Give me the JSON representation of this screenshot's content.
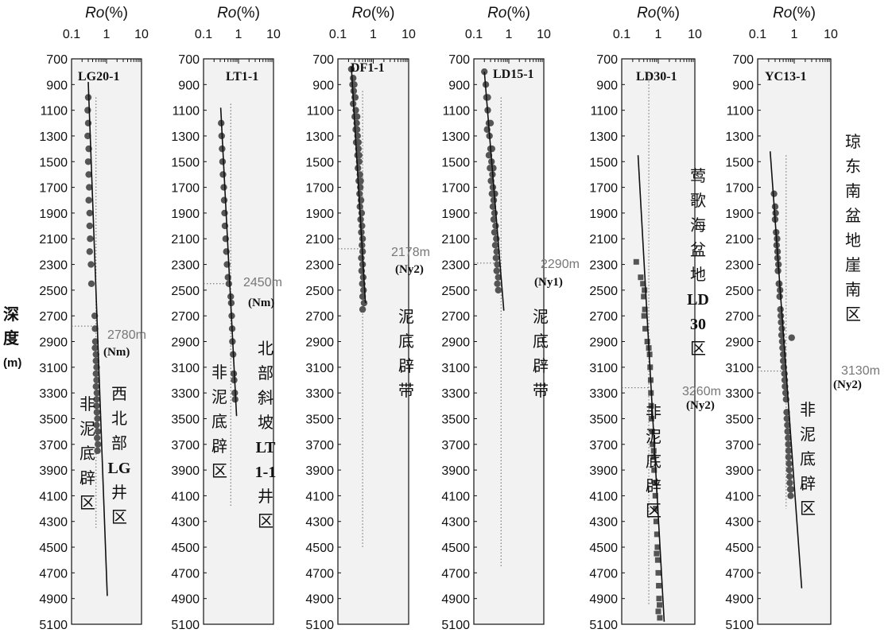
{
  "axis_title_main": "Ro",
  "axis_title_unit": "(%)",
  "x_ticks": [
    "0.1",
    "1",
    "10"
  ],
  "y_axis_label": {
    "line1": "深",
    "line2": "度",
    "unit": "(m)"
  },
  "colors": {
    "panel_bg": "#f2f2f2",
    "dot": "#555555",
    "line": "#111111",
    "threshold": "#777777"
  },
  "chart_data": [
    {
      "type": "scatter",
      "well": "LG20-1",
      "x_scale": "log",
      "xlim": [
        0.1,
        10
      ],
      "ylim": [
        700,
        5100
      ],
      "y_inverted": true,
      "ticks": [
        "700",
        "900",
        "1100",
        "1300",
        "1500",
        "1700",
        "1900",
        "2100",
        "2300",
        "2500",
        "2700",
        "2900",
        "3100",
        "3300",
        "3500",
        "3700",
        "3900",
        "4100",
        "4300",
        "4500",
        "4700",
        "4900",
        "5100"
      ],
      "threshold": {
        "depth": 2780,
        "label": "2780m",
        "formation": "(Nm)"
      },
      "zones": [
        {
          "text": "非泥底辟区"
        },
        {
          "text": "西北部LG井区"
        }
      ],
      "trend": [
        [
          0.3,
          880
        ],
        [
          1.05,
          4880
        ]
      ],
      "ref_ro": 0.5,
      "ref_depth": [
        1000,
        4350
      ],
      "marker": "circle",
      "points": [
        [
          0.3,
          1000
        ],
        [
          0.29,
          1100
        ],
        [
          0.3,
          1200
        ],
        [
          0.29,
          1300
        ],
        [
          0.31,
          1400
        ],
        [
          0.3,
          1500
        ],
        [
          0.31,
          1600
        ],
        [
          0.32,
          1700
        ],
        [
          0.31,
          1800
        ],
        [
          0.33,
          1900
        ],
        [
          0.33,
          2000
        ],
        [
          0.34,
          2100
        ],
        [
          0.33,
          2200
        ],
        [
          0.36,
          2300
        ],
        [
          0.37,
          2450
        ],
        [
          0.46,
          2700
        ],
        [
          0.47,
          2800
        ],
        [
          0.48,
          2900
        ],
        [
          0.47,
          2950
        ],
        [
          0.5,
          3000
        ],
        [
          0.5,
          3050
        ],
        [
          0.52,
          3100
        ],
        [
          0.5,
          3150
        ],
        [
          0.52,
          3200
        ],
        [
          0.5,
          3250
        ],
        [
          0.53,
          3300
        ],
        [
          0.52,
          3350
        ],
        [
          0.52,
          3400
        ],
        [
          0.53,
          3450
        ],
        [
          0.55,
          3500
        ],
        [
          0.52,
          3550
        ],
        [
          0.56,
          3600
        ],
        [
          0.54,
          3650
        ],
        [
          0.57,
          3700
        ],
        [
          0.55,
          3750
        ]
      ]
    },
    {
      "type": "scatter",
      "well": "LT1-1",
      "x_scale": "log",
      "xlim": [
        0.1,
        10
      ],
      "ylim": [
        700,
        5100
      ],
      "y_inverted": true,
      "ticks": [
        "700",
        "900",
        "1100",
        "1300",
        "1500",
        "1700",
        "1900",
        "2100",
        "2300",
        "2500",
        "2700",
        "2900",
        "3100",
        "3300",
        "3500",
        "3700",
        "3900",
        "4100",
        "4300",
        "4500",
        "4700",
        "4900",
        "5100"
      ],
      "threshold": {
        "depth": 2450,
        "label": "2450m",
        "formation": "(Nm)"
      },
      "zones": [
        {
          "text": "非泥底辟区"
        },
        {
          "text": "北部斜坡LT1-1井区"
        }
      ],
      "trend": [
        [
          0.31,
          1080
        ],
        [
          0.88,
          3480
        ]
      ],
      "ref_ro": 0.6,
      "ref_depth": [
        1050,
        4180
      ],
      "marker": "circle",
      "points": [
        [
          0.32,
          1200
        ],
        [
          0.33,
          1300
        ],
        [
          0.34,
          1400
        ],
        [
          0.35,
          1500
        ],
        [
          0.36,
          1600
        ],
        [
          0.38,
          1700
        ],
        [
          0.39,
          1800
        ],
        [
          0.4,
          1900
        ],
        [
          0.41,
          2000
        ],
        [
          0.43,
          2100
        ],
        [
          0.45,
          2200
        ],
        [
          0.47,
          2300
        ],
        [
          0.5,
          2400
        ],
        [
          0.53,
          2450
        ],
        [
          0.6,
          2550
        ],
        [
          0.62,
          2600
        ],
        [
          0.64,
          2700
        ],
        [
          0.66,
          2800
        ],
        [
          0.67,
          2900
        ],
        [
          0.7,
          3000
        ],
        [
          0.73,
          3150
        ],
        [
          0.75,
          3200
        ],
        [
          0.78,
          3300
        ],
        [
          0.8,
          3350
        ]
      ]
    },
    {
      "type": "scatter",
      "well": "DF1-1",
      "x_scale": "log",
      "xlim": [
        0.1,
        10
      ],
      "ylim": [
        700,
        5100
      ],
      "y_inverted": true,
      "ticks": [
        "700",
        "900",
        "1100",
        "1300",
        "1500",
        "1700",
        "1900",
        "2100",
        "2300",
        "2500",
        "2700",
        "2900",
        "3100",
        "3300",
        "3500",
        "3700",
        "3900",
        "4100",
        "4300",
        "4500",
        "4700",
        "4900",
        "5100"
      ],
      "threshold": {
        "depth": 2178,
        "label": "2178m",
        "formation": "(Ny2)"
      },
      "zones": [
        {
          "text": "泥底辟带"
        }
      ],
      "trend": [
        [
          0.24,
          760
        ],
        [
          0.6,
          2600
        ]
      ],
      "ref_ro": 0.5,
      "ref_depth": [
        950,
        4500
      ],
      "marker": "circle",
      "points": [
        [
          0.24,
          780
        ],
        [
          0.27,
          850
        ],
        [
          0.26,
          900
        ],
        [
          0.28,
          950
        ],
        [
          0.3,
          1000
        ],
        [
          0.27,
          1050
        ],
        [
          0.32,
          1100
        ],
        [
          0.3,
          1150
        ],
        [
          0.34,
          1200
        ],
        [
          0.32,
          1250
        ],
        [
          0.36,
          1300
        ],
        [
          0.33,
          1350
        ],
        [
          0.38,
          1400
        ],
        [
          0.36,
          1450
        ],
        [
          0.4,
          1500
        ],
        [
          0.37,
          1550
        ],
        [
          0.42,
          1600
        ],
        [
          0.39,
          1650
        ],
        [
          0.43,
          1700
        ],
        [
          0.41,
          1750
        ],
        [
          0.45,
          1800
        ],
        [
          0.42,
          1850
        ],
        [
          0.47,
          1900
        ],
        [
          0.44,
          1950
        ],
        [
          0.48,
          2000
        ],
        [
          0.46,
          2050
        ],
        [
          0.5,
          2100
        ],
        [
          0.48,
          2150
        ],
        [
          0.5,
          2200
        ],
        [
          0.46,
          2250
        ],
        [
          0.5,
          2300
        ],
        [
          0.47,
          2350
        ],
        [
          0.52,
          2400
        ],
        [
          0.49,
          2450
        ],
        [
          0.53,
          2500
        ],
        [
          0.5,
          2550
        ],
        [
          0.55,
          2600
        ],
        [
          0.5,
          2650
        ],
        [
          0.35,
          1250
        ],
        [
          0.38,
          1350
        ],
        [
          0.44,
          1650
        ],
        [
          0.4,
          1450
        ],
        [
          0.29,
          900
        ],
        [
          0.31,
          1000
        ],
        [
          0.35,
          1150
        ]
      ]
    },
    {
      "type": "scatter",
      "well": "LD15-1",
      "x_scale": "log",
      "xlim": [
        0.1,
        10
      ],
      "ylim": [
        700,
        5100
      ],
      "y_inverted": true,
      "ticks": [
        "700",
        "900",
        "1100",
        "1300",
        "1500",
        "1700",
        "1900",
        "2100",
        "2300",
        "2500",
        "2700",
        "2900",
        "3100",
        "3300",
        "3500",
        "3700",
        "3900",
        "4100",
        "4300",
        "4500",
        "4700",
        "4900",
        "5100"
      ],
      "threshold": {
        "depth": 2290,
        "label": "2290m",
        "formation": "(Ny1)"
      },
      "zones": [
        {
          "text": "泥底辟带"
        }
      ],
      "trend": [
        [
          0.2,
          800
        ],
        [
          0.72,
          2660
        ]
      ],
      "ref_ro": 0.6,
      "ref_depth": [
        1000,
        4650
      ],
      "marker": "circle",
      "points": [
        [
          0.2,
          800
        ],
        [
          0.22,
          900
        ],
        [
          0.23,
          1000
        ],
        [
          0.25,
          1100
        ],
        [
          0.27,
          1200
        ],
        [
          0.24,
          1250
        ],
        [
          0.28,
          1300
        ],
        [
          0.3,
          1400
        ],
        [
          0.27,
          1450
        ],
        [
          0.32,
          1500
        ],
        [
          0.29,
          1550
        ],
        [
          0.34,
          1600
        ],
        [
          0.31,
          1650
        ],
        [
          0.35,
          1700
        ],
        [
          0.33,
          1750
        ],
        [
          0.37,
          1800
        ],
        [
          0.35,
          1850
        ],
        [
          0.39,
          1900
        ],
        [
          0.37,
          1950
        ],
        [
          0.42,
          2000
        ],
        [
          0.39,
          2050
        ],
        [
          0.44,
          2100
        ],
        [
          0.41,
          2150
        ],
        [
          0.45,
          2200
        ],
        [
          0.43,
          2250
        ],
        [
          0.47,
          2300
        ],
        [
          0.45,
          2350
        ],
        [
          0.5,
          2400
        ],
        [
          0.47,
          2450
        ],
        [
          0.5,
          2500
        ],
        [
          0.33,
          1400
        ],
        [
          0.36,
          1550
        ],
        [
          0.4,
          1750
        ],
        [
          0.25,
          1000
        ],
        [
          0.3,
          1200
        ]
      ]
    },
    {
      "type": "scatter",
      "well": "LD30-1",
      "x_scale": "log",
      "xlim": [
        0.1,
        10
      ],
      "ylim": [
        700,
        5100
      ],
      "y_inverted": true,
      "ticks": [
        "700",
        "900",
        "1100",
        "1300",
        "1500",
        "1700",
        "1900",
        "2100",
        "2300",
        "2500",
        "2700",
        "2900",
        "3100",
        "3300",
        "3500",
        "3700",
        "3900",
        "4100",
        "4300",
        "4500",
        "4700",
        "4900",
        "5100"
      ],
      "threshold": {
        "depth": 3260,
        "label": "3260m",
        "formation": "(Ny2)"
      },
      "zones": [
        {
          "text": "非泥底辟区"
        },
        {
          "text": "莺歌海盆地LD30区"
        }
      ],
      "trend": [
        [
          0.28,
          1450
        ],
        [
          1.45,
          5080
        ]
      ],
      "ref_ro": 0.55,
      "ref_depth": [
        800,
        4950
      ],
      "marker": "square",
      "points": [
        [
          0.25,
          2280
        ],
        [
          0.33,
          2400
        ],
        [
          0.38,
          2450
        ],
        [
          0.42,
          2500
        ],
        [
          0.4,
          2550
        ],
        [
          0.43,
          2650
        ],
        [
          0.41,
          2700
        ],
        [
          0.44,
          2800
        ],
        [
          0.5,
          2900
        ],
        [
          0.55,
          2950
        ],
        [
          0.58,
          3000
        ],
        [
          0.6,
          3100
        ],
        [
          0.62,
          3200
        ],
        [
          0.63,
          3300
        ],
        [
          0.64,
          3400
        ],
        [
          0.65,
          3500
        ],
        [
          0.68,
          3600
        ],
        [
          0.7,
          3700
        ],
        [
          0.74,
          3800
        ],
        [
          0.77,
          3900
        ],
        [
          0.8,
          4000
        ],
        [
          0.83,
          4100
        ],
        [
          0.85,
          4200
        ],
        [
          0.88,
          4300
        ],
        [
          0.92,
          4400
        ],
        [
          0.95,
          4500
        ],
        [
          0.97,
          4600
        ],
        [
          1.0,
          4700
        ],
        [
          1.03,
          4800
        ],
        [
          1.05,
          4900
        ],
        [
          1.08,
          4950
        ],
        [
          1.0,
          5000
        ],
        [
          1.1,
          5050
        ],
        [
          0.9,
          4550
        ],
        [
          0.75,
          3750
        ]
      ]
    },
    {
      "type": "scatter",
      "well": "YC13-1",
      "x_scale": "log",
      "xlim": [
        0.1,
        10
      ],
      "ylim": [
        700,
        5100
      ],
      "y_inverted": true,
      "ticks": [
        "700",
        "900",
        "1100",
        "1300",
        "1500",
        "1700",
        "1900",
        "2100",
        "2300",
        "2500",
        "2700",
        "2900",
        "3100",
        "3300",
        "3500",
        "3700",
        "3900",
        "4100",
        "4300",
        "4500",
        "4700",
        "4900",
        "5100"
      ],
      "threshold": {
        "depth": 3130,
        "label": "3130m",
        "formation": "(Ny2)"
      },
      "zones": [
        {
          "text": "非泥底辟区"
        },
        {
          "text": "琼东南盆地崖南区"
        }
      ],
      "trend": [
        [
          0.22,
          1420
        ],
        [
          1.6,
          4820
        ]
      ],
      "ref_ro": 0.6,
      "ref_depth": [
        1450,
        4200
      ],
      "marker": "circle",
      "points": [
        [
          0.28,
          1750
        ],
        [
          0.3,
          1850
        ],
        [
          0.3,
          1950
        ],
        [
          0.32,
          2050
        ],
        [
          0.33,
          2150
        ],
        [
          0.35,
          2250
        ],
        [
          0.36,
          2350
        ],
        [
          0.38,
          2450
        ],
        [
          0.4,
          2550
        ],
        [
          0.42,
          2650
        ],
        [
          0.44,
          2750
        ],
        [
          0.45,
          2850
        ],
        [
          0.48,
          2950
        ],
        [
          0.5,
          3050
        ],
        [
          0.54,
          3150
        ],
        [
          0.56,
          3250
        ],
        [
          0.6,
          3350
        ],
        [
          0.62,
          3450
        ],
        [
          0.65,
          3550
        ],
        [
          0.68,
          3650
        ],
        [
          0.7,
          3750
        ],
        [
          0.72,
          3850
        ],
        [
          0.75,
          3950
        ],
        [
          0.78,
          4050
        ],
        [
          0.8,
          4100
        ],
        [
          0.34,
          2100
        ],
        [
          0.37,
          2300
        ],
        [
          0.41,
          2500
        ],
        [
          0.46,
          2800
        ],
        [
          0.52,
          3100
        ],
        [
          0.58,
          3300
        ],
        [
          0.66,
          3600
        ],
        [
          0.73,
          3900
        ],
        [
          0.76,
          4000
        ],
        [
          0.7,
          3800
        ],
        [
          0.63,
          3500
        ],
        [
          0.55,
          3200
        ],
        [
          0.5,
          3000
        ],
        [
          0.43,
          2700
        ],
        [
          0.39,
          2450
        ],
        [
          0.31,
          1900
        ],
        [
          0.85,
          2870
        ],
        [
          0.82,
          4050
        ],
        [
          0.69,
          3700
        ],
        [
          0.47,
          2900
        ],
        [
          0.35,
          2200
        ]
      ]
    }
  ]
}
